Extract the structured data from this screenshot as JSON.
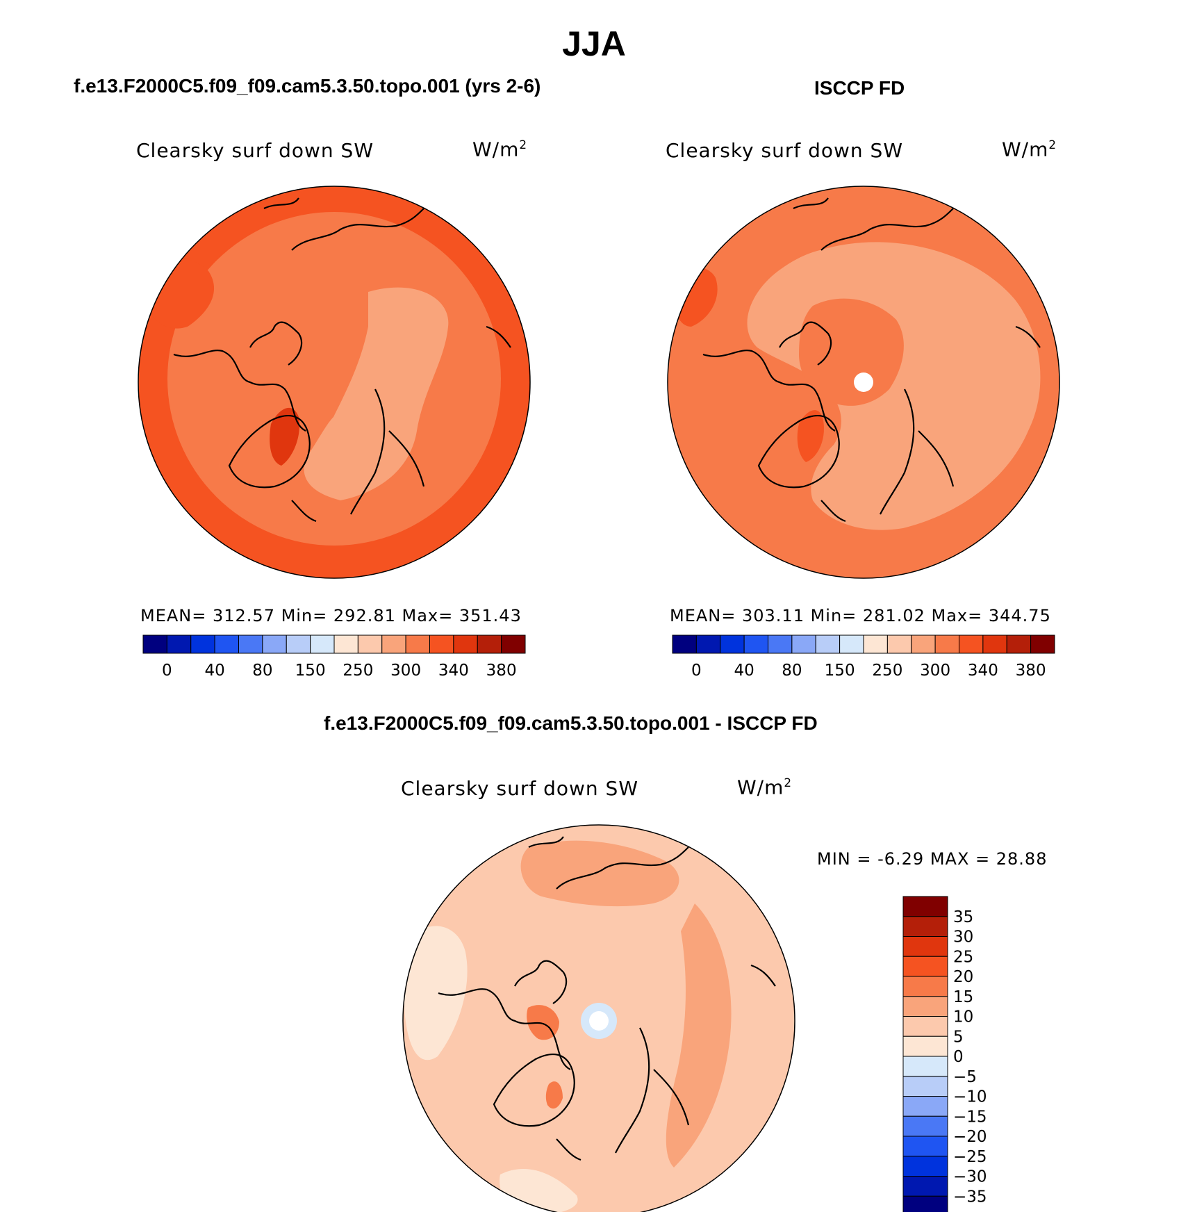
{
  "title": "JJA",
  "panels": [
    {
      "title": "f.e13.F2000C5.f09_f09.cam5.3.50.topo.001 (yrs 2-6)",
      "variable": "Clearsky surf down SW",
      "units": "W/m",
      "units_sup": "2",
      "stats": "MEAN=  312.57   Min=  292.81   Max=  351.43"
    },
    {
      "title": "ISCCP FD",
      "variable": "Clearsky surf down SW",
      "units": "W/m",
      "units_sup": "2",
      "stats": "MEAN=  303.11   Min=  281.02   Max=  344.75"
    },
    {
      "title": "f.e13.F2000C5.f09_f09.cam5.3.50.topo.001 - ISCCP FD",
      "variable": "Clearsky surf down SW",
      "units": "W/m",
      "units_sup": "2",
      "stats": "MIN =    -6.29  MAX =    28.88"
    }
  ],
  "colorbar_abs": {
    "colors": [
      "#00007f",
      "#0018b0",
      "#0033dd",
      "#1f55f2",
      "#4a78f5",
      "#8aa8f7",
      "#b8cdf8",
      "#d6e8fa",
      "#fde6d4",
      "#fcc9ad",
      "#f9a47b",
      "#f77a49",
      "#f55321",
      "#e0360e",
      "#b41f09",
      "#800000"
    ],
    "tick_labels": [
      "0",
      "40",
      "80",
      "150",
      "250",
      "300",
      "340",
      "380"
    ]
  },
  "colorbar_diff": {
    "colors": [
      "#00007f",
      "#0018b0",
      "#0033dd",
      "#1f55f2",
      "#4a78f5",
      "#8aa8f7",
      "#b8cdf8",
      "#d6e8fa",
      "#fde6d4",
      "#fcc9ad",
      "#f9a47b",
      "#f77a49",
      "#f55321",
      "#e0360e",
      "#b41f09",
      "#800000"
    ],
    "tick_labels": [
      "35",
      "30",
      "25",
      "20",
      "15",
      "10",
      "5",
      "0",
      "−5",
      "−10",
      "−15",
      "−20",
      "−25",
      "−30",
      "−35"
    ]
  },
  "map_colors": {
    "model": {
      "base": "#f77a49",
      "outer": "#f55321",
      "inner": "#f9a47b",
      "spot": "#e0360e"
    },
    "obs": {
      "base": "#f77a49",
      "outer": "#f55321",
      "inner": "#f9a47b",
      "spot": "#f55321"
    },
    "diff": {
      "base": "#fcc9ad",
      "outer": "#fde6d4",
      "inner": "#f9a47b",
      "spot": "#f77a49",
      "neg": "#d6e8fa"
    }
  }
}
